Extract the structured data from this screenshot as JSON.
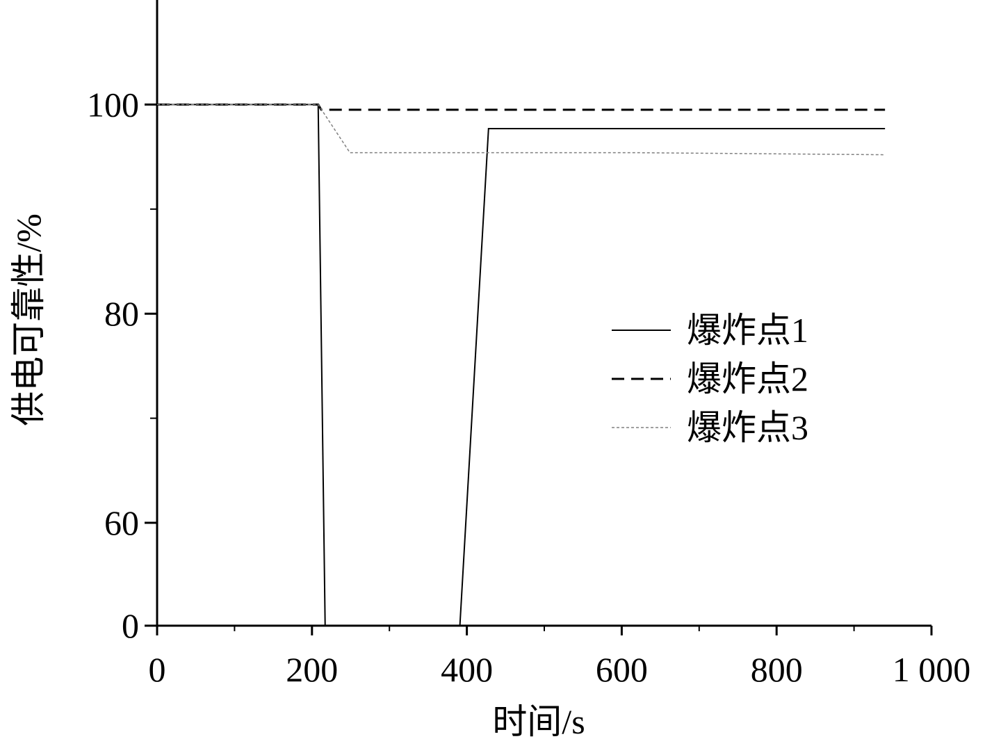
{
  "chart_data": {
    "type": "line",
    "x_label": "时间/s",
    "y_label": "供电可靠性/%",
    "xlim": [
      0,
      1000
    ],
    "xticks": [
      0,
      200,
      400,
      600,
      800,
      {
        "value": 1000,
        "label": "1 000"
      }
    ],
    "xminor": [
      100,
      300,
      500,
      700,
      900
    ],
    "ylim": [
      0,
      110
    ],
    "yticks": [
      0,
      60,
      80,
      100
    ],
    "yminor": [
      70,
      90
    ],
    "broken_axis": true,
    "grid": false,
    "legend": "right",
    "series": [
      {
        "name": "爆炸点1",
        "color": "#000000",
        "line_style": "solid",
        "x": [
          0,
          208,
          217,
          391,
          428,
          940
        ],
        "values": [
          100,
          100,
          0,
          0,
          97.7,
          97.7
        ]
      },
      {
        "name": "爆炸点2",
        "color": "#000000",
        "line_style": "dashed",
        "x": [
          0,
          208,
          212,
          940
        ],
        "values": [
          100,
          100,
          99.5,
          99.5
        ]
      },
      {
        "name": "爆炸点3",
        "color": "#808080",
        "line_style": "dotted",
        "x": [
          0,
          208,
          249,
          615,
          940
        ],
        "values": [
          100,
          100,
          95.4,
          95.4,
          95.2
        ]
      }
    ]
  }
}
